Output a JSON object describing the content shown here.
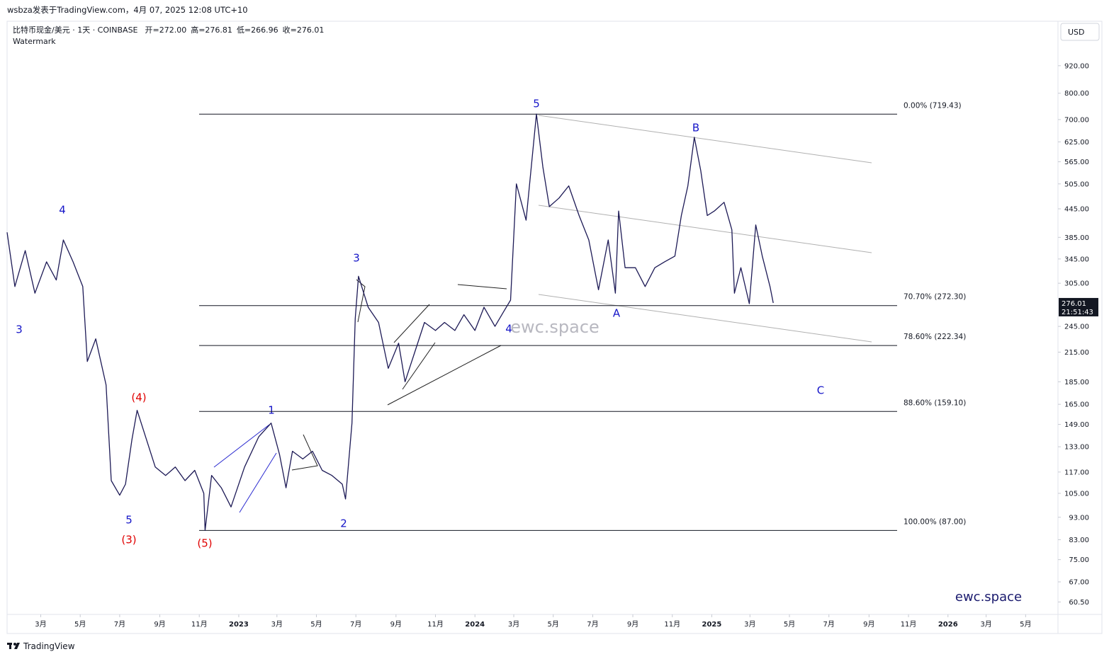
{
  "header": {
    "byline": "wsbza发表于TradingView.com，4月 07, 2025 12:08 UTC+10",
    "symbol": "比特币现金/美元 · 1天 · COINBASE",
    "open": "开=272.00",
    "high": "高=276.81",
    "low": "低=266.96",
    "close": "收=276.01",
    "watermark_label": "Watermark",
    "currency": "USD"
  },
  "chart_data": {
    "type": "line",
    "log_scale": true,
    "grid": false,
    "color": "#1d1a56",
    "xlim": [
      "2022-01-08",
      "2026-06-20"
    ],
    "ylim": [
      56.8,
      1153
    ],
    "yticks": [
      {
        "value": 60.5,
        "label": "60.50"
      },
      {
        "value": 67,
        "label": "67.00"
      },
      {
        "value": 75,
        "label": "75.00"
      },
      {
        "value": 83,
        "label": "83.00"
      },
      {
        "value": 93,
        "label": "93.00"
      },
      {
        "value": 105,
        "label": "105.00"
      },
      {
        "value": 117,
        "label": "117.00"
      },
      {
        "value": 133,
        "label": "133.00"
      },
      {
        "value": 149,
        "label": "149.00"
      },
      {
        "value": 165,
        "label": "165.00"
      },
      {
        "value": 185,
        "label": "185.00"
      },
      {
        "value": 215,
        "label": "215.00"
      },
      {
        "value": 245,
        "label": "245.00"
      },
      {
        "value": 305,
        "label": "305.00"
      },
      {
        "value": 345,
        "label": "345.00"
      },
      {
        "value": 385,
        "label": "385.00"
      },
      {
        "value": 445,
        "label": "445.00"
      },
      {
        "value": 505,
        "label": "505.00"
      },
      {
        "value": 565,
        "label": "565.00"
      },
      {
        "value": 625,
        "label": "625.00"
      },
      {
        "value": 700,
        "label": "700.00"
      },
      {
        "value": 800,
        "label": "800.00"
      },
      {
        "value": 920,
        "label": "920.00"
      }
    ],
    "xticks": [
      {
        "value": "2022-03-01",
        "label": "3月"
      },
      {
        "value": "2022-05-01",
        "label": "5月"
      },
      {
        "value": "2022-07-01",
        "label": "7月"
      },
      {
        "value": "2022-09-01",
        "label": "9月"
      },
      {
        "value": "2022-11-01",
        "label": "11月"
      },
      {
        "value": "2023-01-01",
        "label": "2023"
      },
      {
        "value": "2023-03-01",
        "label": "3月"
      },
      {
        "value": "2023-05-01",
        "label": "5月"
      },
      {
        "value": "2023-07-01",
        "label": "7月"
      },
      {
        "value": "2023-09-01",
        "label": "9月"
      },
      {
        "value": "2023-11-01",
        "label": "11月"
      },
      {
        "value": "2024-01-01",
        "label": "2024"
      },
      {
        "value": "2024-03-01",
        "label": "3月"
      },
      {
        "value": "2024-05-01",
        "label": "5月"
      },
      {
        "value": "2024-07-01",
        "label": "7月"
      },
      {
        "value": "2024-09-01",
        "label": "9月"
      },
      {
        "value": "2024-11-01",
        "label": "11月"
      },
      {
        "value": "2025-01-01",
        "label": "2025"
      },
      {
        "value": "2025-03-01",
        "label": "3月"
      },
      {
        "value": "2025-05-01",
        "label": "5月"
      },
      {
        "value": "2025-07-01",
        "label": "7月"
      },
      {
        "value": "2025-09-01",
        "label": "9月"
      },
      {
        "value": "2025-11-01",
        "label": "11月"
      },
      {
        "value": "2026-01-01",
        "label": "2026"
      },
      {
        "value": "2026-03-01",
        "label": "3月"
      },
      {
        "value": "2026-05-01",
        "label": "5月"
      }
    ],
    "series": [
      {
        "name": "BCHUSD",
        "color": "#1d1a56",
        "x": [
          "2022-01-08",
          "2022-01-20",
          "2022-02-05",
          "2022-02-20",
          "2022-03-10",
          "2022-03-25",
          "2022-04-05",
          "2022-04-20",
          "2022-05-05",
          "2022-05-12",
          "2022-05-25",
          "2022-06-10",
          "2022-06-18",
          "2022-07-01",
          "2022-07-10",
          "2022-07-20",
          "2022-07-28",
          "2022-08-10",
          "2022-08-25",
          "2022-09-10",
          "2022-09-25",
          "2022-10-10",
          "2022-10-25",
          "2022-11-08",
          "2022-11-10",
          "2022-11-20",
          "2022-12-05",
          "2022-12-20",
          "2023-01-10",
          "2023-02-01",
          "2023-02-20",
          "2023-03-05",
          "2023-03-15",
          "2023-03-25",
          "2023-04-10",
          "2023-04-25",
          "2023-05-10",
          "2023-05-25",
          "2023-06-10",
          "2023-06-15",
          "2023-06-25",
          "2023-06-30",
          "2023-07-05",
          "2023-07-20",
          "2023-08-05",
          "2023-08-20",
          "2023-09-05",
          "2023-09-15",
          "2023-09-30",
          "2023-10-15",
          "2023-11-01",
          "2023-11-15",
          "2023-12-01",
          "2023-12-15",
          "2024-01-01",
          "2024-01-15",
          "2024-02-01",
          "2024-02-15",
          "2024-02-25",
          "2024-03-05",
          "2024-03-20",
          "2024-04-05",
          "2024-04-15",
          "2024-04-25",
          "2024-05-10",
          "2024-05-25",
          "2024-06-10",
          "2024-06-25",
          "2024-07-10",
          "2024-07-25",
          "2024-08-05",
          "2024-08-10",
          "2024-08-20",
          "2024-09-05",
          "2024-09-20",
          "2024-10-05",
          "2024-10-20",
          "2024-11-05",
          "2024-11-15",
          "2024-11-25",
          "2024-12-05",
          "2024-12-15",
          "2024-12-25",
          "2025-01-05",
          "2025-01-20",
          "2025-02-01",
          "2025-02-05",
          "2025-02-15",
          "2025-02-28",
          "2025-03-10",
          "2025-03-20",
          "2025-04-01",
          "2025-04-06"
        ],
        "values": [
          395,
          300,
          360,
          290,
          340,
          310,
          380,
          340,
          300,
          205,
          230,
          182,
          112,
          104,
          110,
          138,
          160,
          140,
          120,
          115,
          120,
          112,
          118,
          105,
          87,
          115,
          108,
          98,
          120,
          140,
          150,
          128,
          108,
          130,
          125,
          130,
          118,
          115,
          110,
          102,
          150,
          255,
          316,
          270,
          250,
          198,
          225,
          185,
          215,
          250,
          240,
          250,
          240,
          260,
          240,
          270,
          245,
          265,
          280,
          505,
          420,
          720,
          550,
          450,
          470,
          500,
          430,
          380,
          295,
          380,
          290,
          440,
          330,
          330,
          300,
          330,
          340,
          350,
          430,
          500,
          640,
          540,
          430,
          440,
          460,
          400,
          290,
          330,
          275,
          410,
          350,
          300,
          276
        ]
      }
    ],
    "fib_levels": [
      {
        "label": "0.00% (719.43)",
        "value": 719.43
      },
      {
        "label": "70.70% (272.30)",
        "value": 272.3
      },
      {
        "label": "78.60% (222.34)",
        "value": 222.34
      },
      {
        "label": "88.60% (159.10)",
        "value": 159.1
      },
      {
        "label": "100.00% (87.00)",
        "value": 87
      }
    ],
    "price_tag": {
      "value": 276.01,
      "label": "276.01"
    },
    "countdown": "21:51:43",
    "waves": [
      {
        "label": "3",
        "color": "#1515c8"
      },
      {
        "label": "4",
        "color": "#1515c8"
      },
      {
        "label": "5",
        "color": "#1515c8"
      },
      {
        "label": "(3)",
        "color": "#e00000"
      },
      {
        "label": "(4)",
        "color": "#e00000"
      },
      {
        "label": "(5)",
        "color": "#e00000"
      },
      {
        "label": "1",
        "color": "#1515c8"
      },
      {
        "label": "2",
        "color": "#1515c8"
      },
      {
        "label": "3",
        "color": "#1515c8"
      },
      {
        "label": "4",
        "color": "#1515c8"
      },
      {
        "label": "5",
        "color": "#1515c8"
      },
      {
        "label": "A",
        "color": "#1515c8"
      },
      {
        "label": "B",
        "color": "#1515c8"
      },
      {
        "label": "C",
        "color": "#1515c8"
      }
    ],
    "watermark": "ewc.space",
    "brand": "ewc.space",
    "footer": "TradingView"
  }
}
